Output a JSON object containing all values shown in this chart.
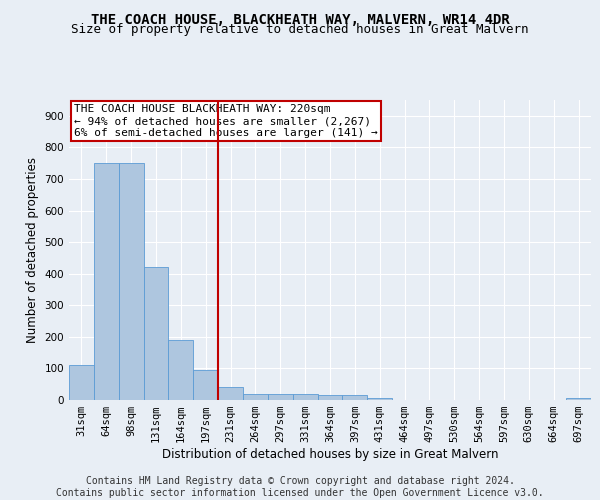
{
  "title": "THE COACH HOUSE, BLACKHEATH WAY, MALVERN, WR14 4DR",
  "subtitle": "Size of property relative to detached houses in Great Malvern",
  "xlabel": "Distribution of detached houses by size in Great Malvern",
  "ylabel": "Number of detached properties",
  "categories": [
    "31sqm",
    "64sqm",
    "98sqm",
    "131sqm",
    "164sqm",
    "197sqm",
    "231sqm",
    "264sqm",
    "297sqm",
    "331sqm",
    "364sqm",
    "397sqm",
    "431sqm",
    "464sqm",
    "497sqm",
    "530sqm",
    "564sqm",
    "597sqm",
    "630sqm",
    "664sqm",
    "697sqm"
  ],
  "values": [
    110,
    750,
    750,
    420,
    190,
    95,
    40,
    20,
    20,
    20,
    15,
    15,
    5,
    0,
    0,
    0,
    0,
    0,
    0,
    0,
    5
  ],
  "bar_color": "#aec6df",
  "bar_edge_color": "#5b9bd5",
  "vline_color": "#c00000",
  "vline_index": 5.5,
  "annotation_text": "THE COACH HOUSE BLACKHEATH WAY: 220sqm\n← 94% of detached houses are smaller (2,267)\n6% of semi-detached houses are larger (141) →",
  "annotation_box_color": "#c00000",
  "ylim": [
    0,
    950
  ],
  "yticks": [
    0,
    100,
    200,
    300,
    400,
    500,
    600,
    700,
    800,
    900
  ],
  "footer_text": "Contains HM Land Registry data © Crown copyright and database right 2024.\nContains public sector information licensed under the Open Government Licence v3.0.",
  "bg_color": "#e8eef5",
  "plot_bg_color": "#e8eef5",
  "grid_color": "#ffffff",
  "title_fontsize": 10,
  "subtitle_fontsize": 9,
  "axis_label_fontsize": 8.5,
  "tick_fontsize": 7.5,
  "footer_fontsize": 7,
  "annotation_fontsize": 8
}
